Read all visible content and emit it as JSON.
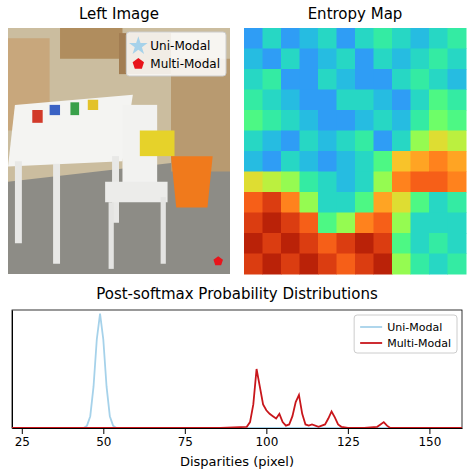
{
  "chart_data": [
    {
      "type": "image",
      "title": "Left Image",
      "xlim": [
        0,
        640
      ],
      "ylim": [
        480,
        0
      ],
      "tick_labels": false,
      "legend": "upper right",
      "series": [
        {
          "name": "Uni-Modal",
          "color": "#a6d2ea",
          "marker": "star",
          "x": [],
          "values": []
        },
        {
          "name": "Multi-Modal",
          "color": "#e8141b",
          "marker": "pentagon",
          "x": [
            606
          ],
          "values": [
            455
          ]
        }
      ]
    },
    {
      "type": "heatmap",
      "title": "Entropy Map",
      "tick_labels": false,
      "color_range": [
        0,
        1
      ],
      "cells": [
        [
          0.2,
          0.3,
          0.2,
          0.25,
          0.3,
          0.2,
          0.3,
          0.35,
          0.3,
          0.25,
          0.3,
          0.35
        ],
        [
          0.25,
          0.2,
          0.3,
          0.2,
          0.25,
          0.3,
          0.2,
          0.3,
          0.25,
          0.3,
          0.35,
          0.3
        ],
        [
          0.3,
          0.35,
          0.2,
          0.2,
          0.3,
          0.25,
          0.2,
          0.2,
          0.3,
          0.35,
          0.3,
          0.25
        ],
        [
          0.35,
          0.3,
          0.25,
          0.2,
          0.2,
          0.3,
          0.3,
          0.25,
          0.2,
          0.3,
          0.4,
          0.35
        ],
        [
          0.4,
          0.35,
          0.3,
          0.25,
          0.2,
          0.2,
          0.25,
          0.3,
          0.25,
          0.35,
          0.45,
          0.4
        ],
        [
          0.3,
          0.25,
          0.2,
          0.3,
          0.25,
          0.3,
          0.35,
          0.2,
          0.3,
          0.5,
          0.6,
          0.55
        ],
        [
          0.25,
          0.2,
          0.3,
          0.25,
          0.2,
          0.25,
          0.3,
          0.4,
          0.65,
          0.7,
          0.75,
          0.7
        ],
        [
          0.6,
          0.55,
          0.5,
          0.35,
          0.3,
          0.25,
          0.3,
          0.5,
          0.75,
          0.8,
          0.8,
          0.75
        ],
        [
          0.8,
          0.85,
          0.75,
          0.5,
          0.3,
          0.3,
          0.4,
          0.7,
          0.6,
          0.4,
          0.3,
          0.35
        ],
        [
          0.85,
          0.9,
          0.85,
          0.8,
          0.4,
          0.5,
          0.75,
          0.8,
          0.5,
          0.3,
          0.3,
          0.3
        ],
        [
          0.9,
          0.85,
          0.9,
          0.85,
          0.8,
          0.85,
          0.9,
          0.85,
          0.4,
          0.3,
          0.35,
          0.3
        ],
        [
          0.85,
          0.9,
          0.85,
          0.9,
          0.85,
          0.8,
          0.85,
          0.9,
          0.5,
          0.35,
          0.3,
          0.35
        ]
      ]
    },
    {
      "type": "line",
      "title": "Post-softmax Probability Distributions",
      "x_label": "Disparities (pixel)",
      "xlim": [
        22,
        160
      ],
      "xticks": [
        25,
        50,
        75,
        100,
        125,
        150
      ],
      "ylim": [
        0,
        1
      ],
      "tick_labels": "x",
      "legend": "upper right",
      "series": [
        {
          "name": "Uni-Modal",
          "color": "#a6d2ea",
          "x": [
            22,
            44,
            45,
            46,
            47,
            48,
            49,
            50,
            51,
            52,
            53,
            54,
            160
          ],
          "values": [
            0,
            0,
            0.02,
            0.1,
            0.35,
            0.75,
            0.97,
            0.75,
            0.35,
            0.1,
            0.02,
            0,
            0
          ]
        },
        {
          "name": "Multi-Modal",
          "color": "#c8161b",
          "x": [
            22,
            86,
            94,
            95,
            96,
            97,
            98,
            99,
            100,
            101,
            102,
            103,
            104,
            105,
            106,
            107,
            108,
            109,
            110,
            111,
            112,
            113,
            114,
            116,
            118,
            119,
            120,
            121,
            122,
            123,
            125,
            130,
            134,
            135,
            136,
            137,
            138,
            145,
            160
          ],
          "values": [
            0,
            0,
            0.01,
            0.05,
            0.2,
            0.5,
            0.35,
            0.2,
            0.15,
            0.12,
            0.1,
            0.08,
            0.12,
            0.05,
            0.02,
            0.03,
            0.1,
            0.22,
            0.28,
            0.12,
            0.03,
            0.02,
            0.03,
            0.01,
            0.03,
            0.08,
            0.14,
            0.09,
            0.03,
            0.01,
            0,
            0,
            0.01,
            0.03,
            0.05,
            0.02,
            0,
            0,
            0
          ]
        }
      ]
    }
  ]
}
